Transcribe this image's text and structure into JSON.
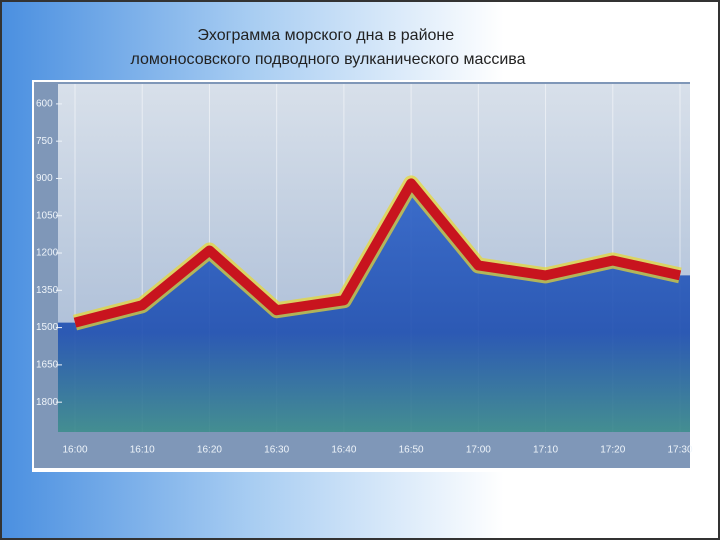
{
  "chart_data": {
    "type": "line",
    "title": "Эхограмма морского дна в районе ломоносовского подводного вулканического массива",
    "categories": [
      "16:00",
      "16:10",
      "16:20",
      "16:30",
      "16:40",
      "16:50",
      "17:00",
      "17:10",
      "17:20",
      "17:30"
    ],
    "series": [
      {
        "color": "#c8141e",
        "values": [
          1480,
          1410,
          1190,
          1430,
          1390,
          920,
          1250,
          1290,
          1230,
          1290
        ]
      }
    ],
    "ylim": [
      520,
      1920
    ],
    "inverted": true,
    "yticks": [
      600,
      750,
      900,
      1050,
      1200,
      1350,
      1500,
      1650,
      1800
    ]
  }
}
